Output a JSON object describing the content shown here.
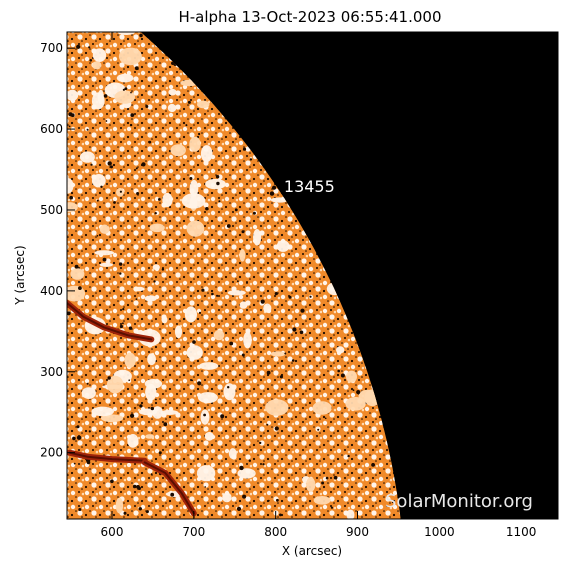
{
  "title": "H-alpha 13-Oct-2023 06:55:41.000",
  "xlabel": "X (arcsec)",
  "ylabel": "Y (arcsec)",
  "region_label": "13455",
  "watermark": "SolarMonitor.org",
  "colors": {
    "background": "#ffffff",
    "space": "#000000",
    "disk_base": "#f08a2a",
    "disk_light": "#ffd9b0",
    "disk_white": "#fff4ea",
    "disk_dark": "#1a0a00",
    "filament": "#a0240a",
    "axis": "#000000",
    "text": "#000000",
    "label_on_space": "#ffffff"
  },
  "chart_data": {
    "type": "heatmap",
    "title": "H-alpha 13-Oct-2023 06:55:41.000",
    "xlabel": "X (arcsec)",
    "ylabel": "Y (arcsec)",
    "xlim": [
      545,
      1145
    ],
    "ylim": [
      118,
      720
    ],
    "xticks": [
      600,
      700,
      800,
      900,
      1000,
      1100
    ],
    "yticks": [
      200,
      300,
      400,
      500,
      600,
      700
    ],
    "limb_radius_arcsec": 960,
    "region": {
      "number": "13455",
      "x": 810,
      "y": 522
    },
    "filaments": [
      {
        "points": [
          [
            545,
            385
          ],
          [
            565,
            368
          ],
          [
            590,
            355
          ],
          [
            620,
            345
          ],
          [
            648,
            340
          ]
        ]
      },
      {
        "points": [
          [
            548,
            200
          ],
          [
            570,
            195
          ],
          [
            600,
            192
          ],
          [
            640,
            190
          ]
        ]
      },
      {
        "points": [
          [
            640,
            188
          ],
          [
            665,
            175
          ],
          [
            685,
            150
          ],
          [
            700,
            125
          ]
        ]
      }
    ]
  }
}
